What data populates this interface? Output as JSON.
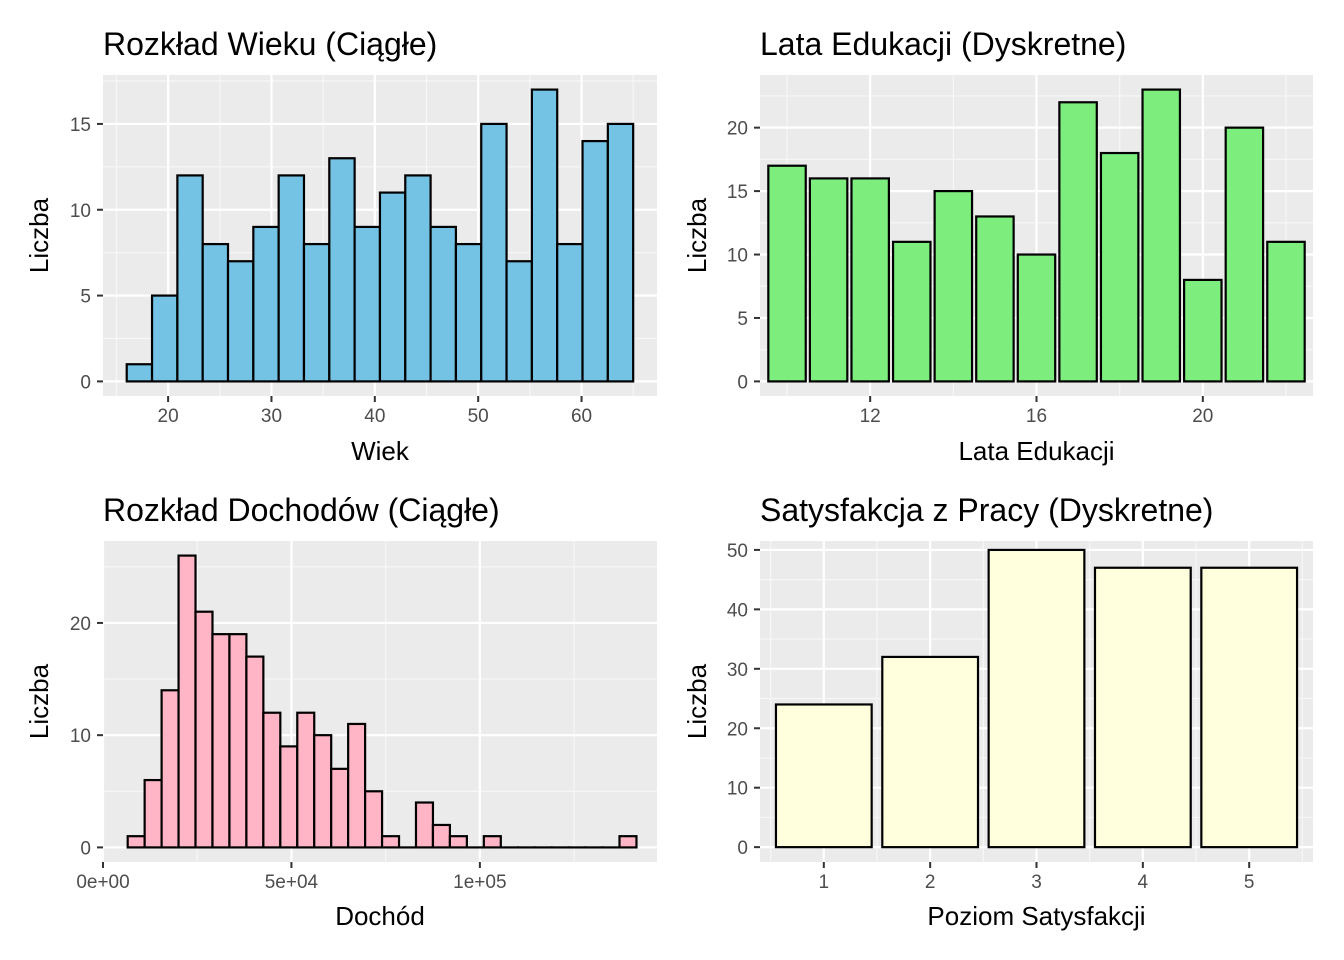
{
  "chart_data": [
    {
      "type": "bar",
      "title": "Rozkład Wieku (Ciągłe)",
      "xlabel": "Wiek",
      "ylabel": "Liczba",
      "fill": "#74c2e4",
      "grid": true,
      "xlim": [
        13.7,
        67.3
      ],
      "ylim": [
        -0.85,
        17.85
      ],
      "x_ticks": [
        20,
        30,
        40,
        50,
        60
      ],
      "x_tick_labels": [
        "20",
        "30",
        "40",
        "50",
        "60"
      ],
      "y_ticks": [
        0,
        5,
        10,
        15
      ],
      "y_tick_labels": [
        "0",
        "5",
        "10",
        "15"
      ],
      "x": [
        17.22,
        19.67,
        22.12,
        24.57,
        27.02,
        29.47,
        31.92,
        34.37,
        36.82,
        39.27,
        41.72,
        44.17,
        46.62,
        49.07,
        51.52,
        53.97,
        56.42,
        58.87,
        61.32,
        63.77
      ],
      "bin_width": 2.45,
      "values": [
        1,
        5,
        12,
        8,
        7,
        9,
        12,
        8,
        13,
        9,
        11,
        12,
        9,
        8,
        15,
        7,
        17,
        8,
        14,
        15
      ]
    },
    {
      "type": "bar",
      "title": "Lata Edukacji (Dyskretne)",
      "xlabel": "Lata Edukacji",
      "ylabel": "Liczba",
      "fill": "#7ded7d",
      "grid": true,
      "xlim": [
        9.35,
        22.65
      ],
      "ylim": [
        -1.15,
        24.15
      ],
      "x_ticks": [
        12,
        16,
        20
      ],
      "x_tick_labels": [
        "12",
        "16",
        "20"
      ],
      "y_ticks": [
        0,
        5,
        10,
        15,
        20
      ],
      "y_tick_labels": [
        "0",
        "5",
        "10",
        "15",
        "20"
      ],
      "x": [
        10,
        11,
        12,
        13,
        14,
        15,
        16,
        17,
        18,
        19,
        20,
        21,
        22
      ],
      "bin_width": 0.9,
      "values": [
        17,
        16,
        16,
        11,
        15,
        13,
        10,
        22,
        18,
        23,
        8,
        20,
        11
      ]
    },
    {
      "type": "bar",
      "title": "Rozkład Dochodów (Ciągłe)",
      "xlabel": "Dochód",
      "ylabel": "Liczba",
      "fill": "#ffb5c5",
      "grid": true,
      "xlim": [
        0,
        147000
      ],
      "ylim": [
        -1.3,
        27.3
      ],
      "x_ticks": [
        0,
        50000,
        100000
      ],
      "x_tick_labels": [
        "0e+00",
        "5e+04",
        "1e+05"
      ],
      "y_ticks": [
        0,
        10,
        20
      ],
      "y_tick_labels": [
        "0",
        "10",
        "20"
      ],
      "x": [
        8800,
        13300,
        17800,
        22300,
        26800,
        31300,
        35800,
        40300,
        44800,
        49300,
        53800,
        58300,
        62800,
        67300,
        71800,
        76300,
        80800,
        85300,
        89800,
        94300,
        98800,
        103300,
        107800,
        112300,
        116800,
        121300,
        125800,
        130300,
        134800,
        139300
      ],
      "bin_width": 4500,
      "values": [
        1,
        6,
        14,
        26,
        21,
        19,
        19,
        17,
        12,
        9,
        12,
        10,
        7,
        11,
        5,
        1,
        0,
        4,
        2,
        1,
        0,
        1,
        0,
        0,
        0,
        0,
        0,
        0,
        0,
        1
      ]
    },
    {
      "type": "bar",
      "title": "Satysfakcja z Pracy (Dyskretne)",
      "xlabel": "Poziom Satysfakcji",
      "ylabel": "Liczba",
      "fill": "#ffffdd",
      "grid": true,
      "xlim": [
        0.4,
        5.6
      ],
      "ylim": [
        -2.5,
        51.5
      ],
      "x_ticks": [
        1,
        2,
        3,
        4,
        5
      ],
      "x_tick_labels": [
        "1",
        "2",
        "3",
        "4",
        "5"
      ],
      "y_ticks": [
        0,
        10,
        20,
        30,
        40,
        50
      ],
      "y_tick_labels": [
        "0",
        "10",
        "20",
        "30",
        "40",
        "50"
      ],
      "x": [
        1,
        2,
        3,
        4,
        5
      ],
      "bin_width": 0.9,
      "values": [
        24,
        32,
        50,
        47,
        47
      ]
    }
  ]
}
